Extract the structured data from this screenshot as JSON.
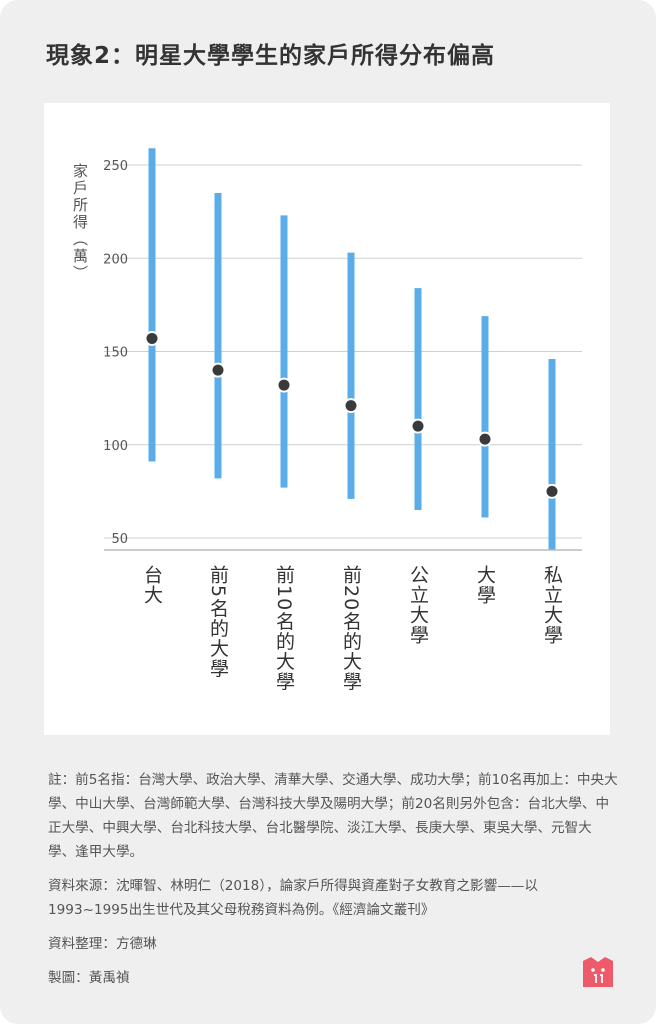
{
  "title": "現象2：明星大學學生的家戶所得分布偏高",
  "chart_data": {
    "type": "range",
    "ylabel": "家戶所得（萬）",
    "yticks": [
      50,
      100,
      150,
      200,
      250
    ],
    "ylim": [
      45,
      260
    ],
    "categories": [
      "台大",
      "前5名的大學",
      "前10名的大學",
      "前20名的大學",
      "公立大學",
      "大學",
      "私立大學"
    ],
    "low": [
      91,
      82,
      77,
      71,
      65,
      61,
      44
    ],
    "high": [
      259,
      235,
      223,
      203,
      184,
      169,
      146
    ],
    "mid": [
      157,
      140,
      132,
      121,
      110,
      103,
      75
    ],
    "bar_color": "#5aade8",
    "dot_color": "#3a3a3a"
  },
  "notes": {
    "note": "註：前5名指：台灣大學、政治大學、清華大學、交通大學、成功大學；前10名再加上：中央大學、中山大學、台灣師範大學、台灣科技大學及陽明大學；前20名則另外包含：台北大學、中正大學、中興大學、台北科技大學、台北醫學院、淡江大學、長庚大學、東吳大學、元智大學、逢甲大學。",
    "source": "資料來源：沈暉智、林明仁（2018），論家戶所得與資產對子女教育之影響——以1993~1995出生世代及其父母稅務資料為例。《經濟論文叢刊》",
    "compiler": "資料整理：方德琳",
    "designer": "製圖：黃禹禎"
  },
  "logo_color": "#ef5a6a"
}
